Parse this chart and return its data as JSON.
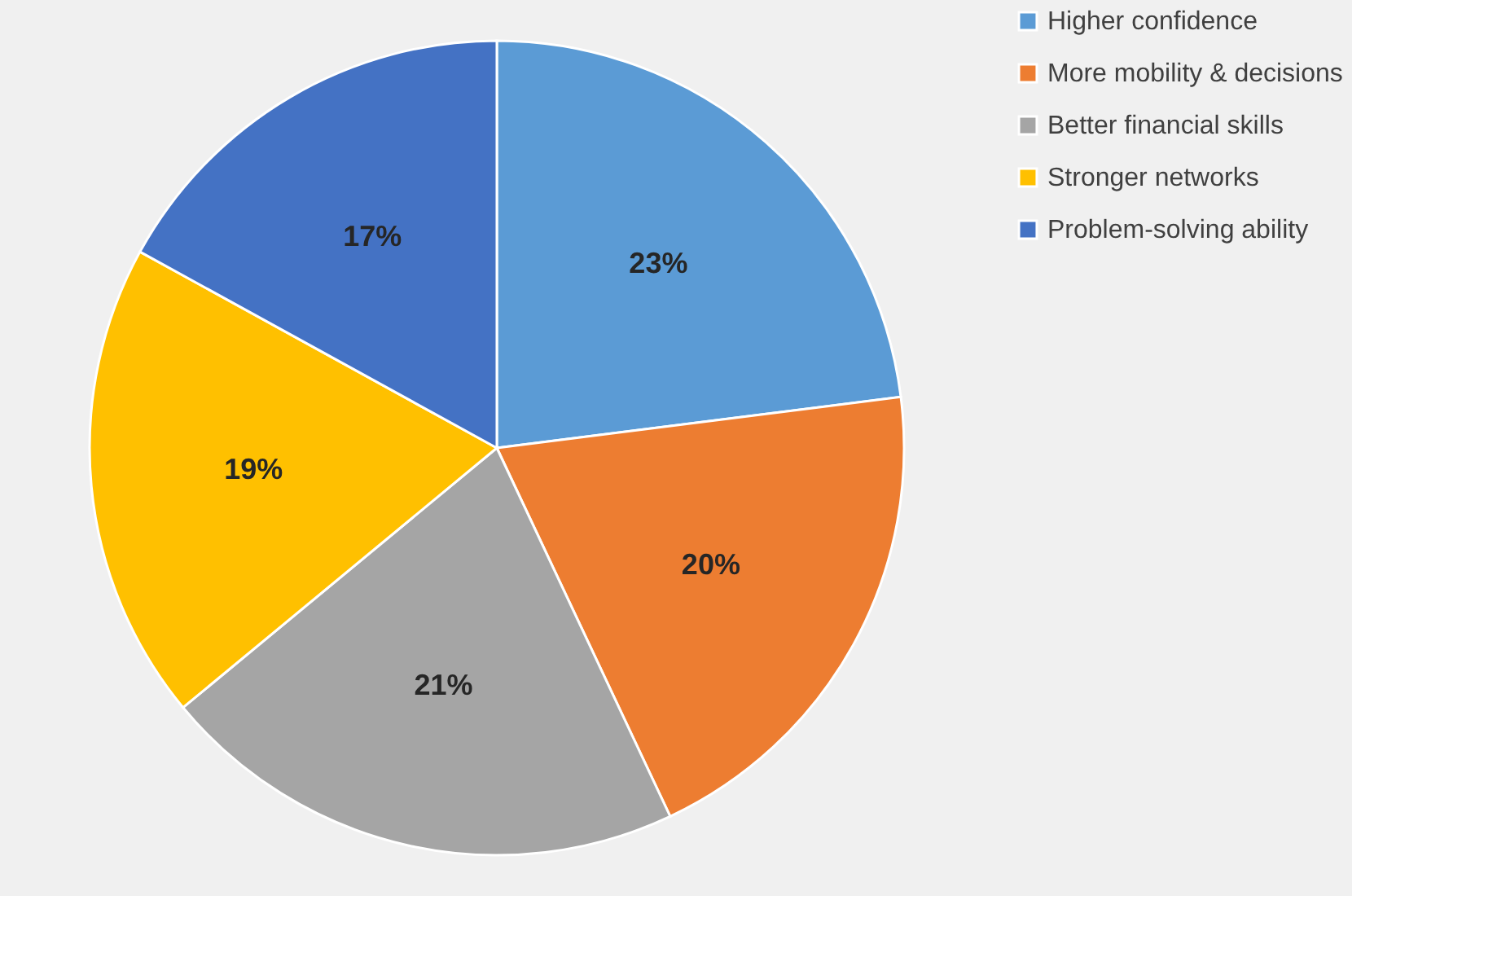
{
  "chart_data": {
    "type": "pie",
    "categories": [
      "Higher confidence",
      "More mobility & decisions",
      "Better financial skills",
      "Stronger networks",
      "Problem-solving ability"
    ],
    "values": [
      23,
      20,
      21,
      19,
      17
    ],
    "colors": [
      "#5b9bd5",
      "#ed7d31",
      "#a5a5a5",
      "#ffc000",
      "#4472c4"
    ],
    "value_labels": [
      "23%",
      "20%",
      "21%",
      "19%",
      "17%"
    ],
    "legend": "right"
  }
}
